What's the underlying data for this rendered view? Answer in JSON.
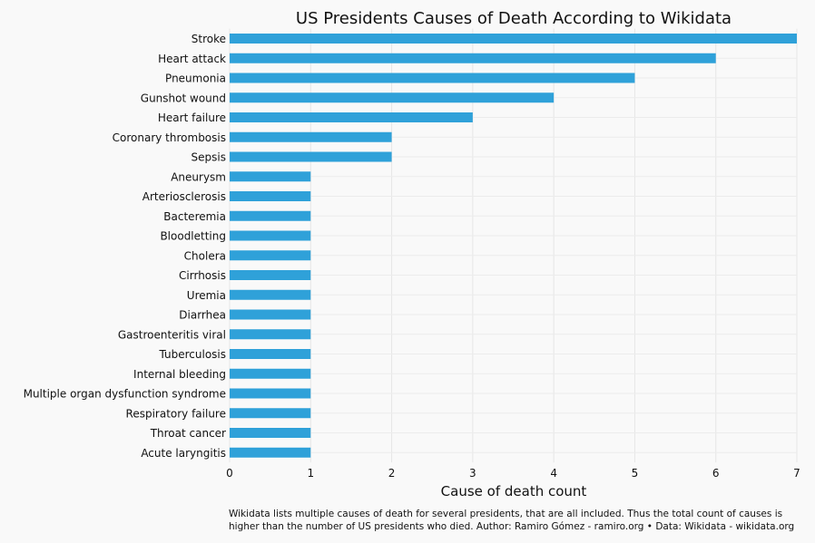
{
  "chart_data": {
    "type": "bar",
    "orientation": "horizontal",
    "title": "US Presidents Causes of Death According to Wikidata",
    "xlabel": "Cause of death count",
    "ylabel": "",
    "xlim": [
      0,
      7
    ],
    "xticks": [
      "0",
      "1",
      "2",
      "3",
      "4",
      "5",
      "6",
      "7"
    ],
    "grid": true,
    "bar_color": "#2fa1d9",
    "categories": [
      "Stroke",
      "Heart attack",
      "Pneumonia",
      "Gunshot wound",
      "Heart failure",
      "Coronary thrombosis",
      "Sepsis",
      "Aneurysm",
      "Arteriosclerosis",
      "Bacteremia",
      "Bloodletting",
      "Cholera",
      "Cirrhosis",
      "Uremia",
      "Diarrhea",
      "Gastroenteritis viral",
      "Tuberculosis",
      "Internal bleeding",
      "Multiple organ dysfunction syndrome",
      "Respiratory failure",
      "Throat cancer",
      "Acute laryngitis"
    ],
    "values": [
      7,
      6,
      5,
      4,
      3,
      2,
      2,
      1,
      1,
      1,
      1,
      1,
      1,
      1,
      1,
      1,
      1,
      1,
      1,
      1,
      1,
      1
    ]
  },
  "caption": {
    "line1": "Wikidata lists multiple causes of death for several presidents, that are all included. Thus the total count of causes is",
    "line2": "higher than the number of US presidents who died. Author: Ramiro Gómez - ramiro.org • Data: Wikidata - wikidata.org"
  }
}
